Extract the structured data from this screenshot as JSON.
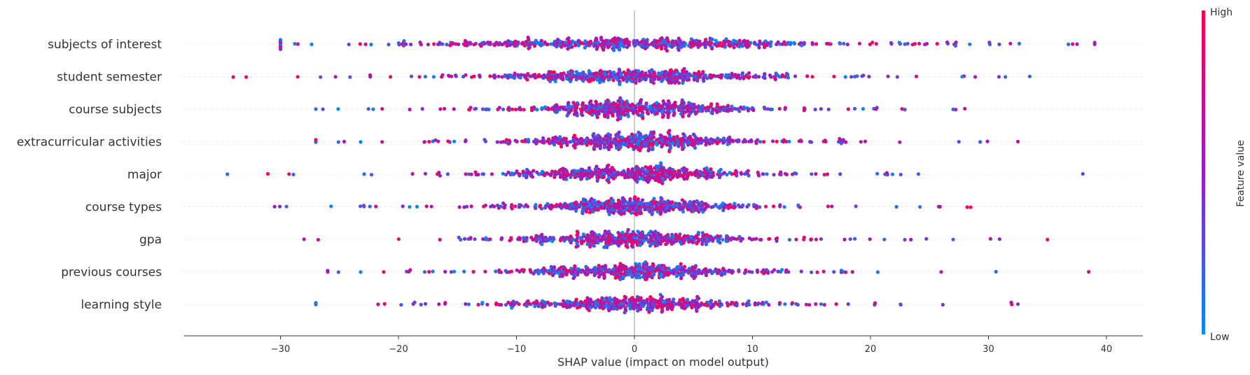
{
  "chart_data": {
    "type": "scatter",
    "subtype": "shap-beeswarm",
    "features": [
      {
        "name": "subjects of interest",
        "min": -30,
        "max": 39,
        "spread": 7.5,
        "count": 520
      },
      {
        "name": "student semester",
        "min": -34,
        "max": 33.5,
        "spread": 5.5,
        "count": 500
      },
      {
        "name": "course subjects",
        "min": -27,
        "max": 28,
        "spread": 4.5,
        "count": 500
      },
      {
        "name": "extracurricular activities",
        "min": -27,
        "max": 32.5,
        "spread": 4.5,
        "count": 500
      },
      {
        "name": "major",
        "min": -34.5,
        "max": 38,
        "spread": 4.5,
        "count": 470
      },
      {
        "name": "course types",
        "min": -30.5,
        "max": 28.5,
        "spread": 4.5,
        "count": 470
      },
      {
        "name": "gpa",
        "min": -28,
        "max": 35,
        "spread": 4.5,
        "count": 460
      },
      {
        "name": "previous courses",
        "min": -26,
        "max": 38.5,
        "spread": 4.5,
        "count": 450
      },
      {
        "name": "learning style",
        "min": -27,
        "max": 32.5,
        "spread": 4.5,
        "count": 440
      }
    ],
    "xlabel": "SHAP value (impact on model output)",
    "xticks": [
      -30,
      -20,
      -10,
      0,
      10,
      20,
      30,
      40
    ],
    "xtick_labels": [
      "−30",
      "−20",
      "−10",
      "0",
      "10",
      "20",
      "30",
      "40"
    ],
    "xlim": [
      -38,
      43.2
    ],
    "colorbar": {
      "label": "Feature value",
      "high": "High",
      "low": "Low",
      "high_color": "#ff0052",
      "mid_color": "#9b1bc4",
      "low_color": "#008bfb"
    }
  }
}
